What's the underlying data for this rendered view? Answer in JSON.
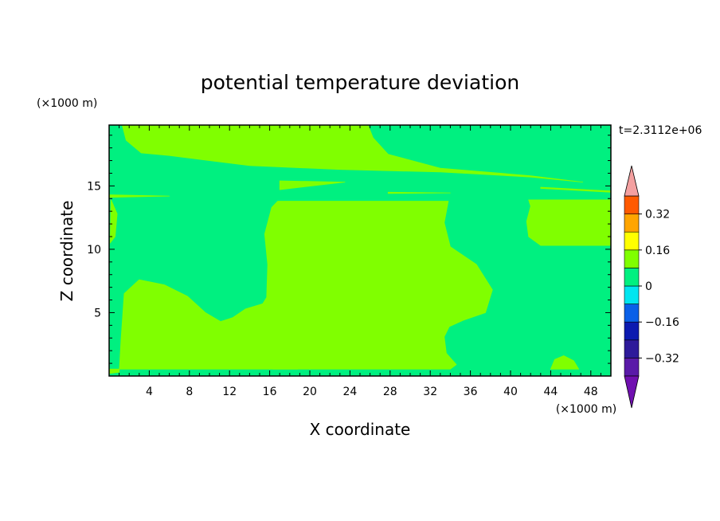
{
  "chart_data": {
    "type": "heatmap",
    "title": "potential temperature deviation",
    "time_label": "t=2.3112e+06",
    "xlabel": "X coordinate",
    "ylabel": "Z coordinate",
    "x_unit": "(×1000 m)",
    "y_unit": "(×1000 m)",
    "xlim": [
      0,
      50
    ],
    "ylim": [
      0,
      19.8
    ],
    "x_ticks": [
      4,
      8,
      12,
      16,
      20,
      24,
      28,
      32,
      36,
      40,
      44,
      48
    ],
    "y_ticks": [
      5,
      10,
      15
    ],
    "levels": [
      -0.4,
      -0.32,
      -0.24,
      -0.16,
      -0.08,
      0,
      0.08,
      0.16,
      0.24,
      0.32,
      0.4
    ],
    "level_labels": [
      {
        "value": 0.32,
        "text": "0.32"
      },
      {
        "value": 0.16,
        "text": "0.16"
      },
      {
        "value": 0,
        "text": "0"
      },
      {
        "value": -0.16,
        "text": "−0.16"
      },
      {
        "value": -0.32,
        "text": "−0.32"
      }
    ],
    "colorbar_colors": [
      "#5a1aa8",
      "#2e1a9a",
      "#0c1ab0",
      "#0a60e8",
      "#00e6f0",
      "#00f080",
      "#80ff00",
      "#ffff00",
      "#ffa500",
      "#ff5a00",
      "#ff2020"
    ],
    "under_color": "#7010b0",
    "over_color": "#f4a0a0",
    "field_colors": {
      "negative": "#00f080",
      "positive": "#80ff00"
    },
    "positive_regions": [
      [
        [
          1.3,
          19.8
        ],
        [
          25.8,
          19.8
        ],
        [
          26.3,
          18.8
        ],
        [
          27.8,
          17.5
        ],
        [
          33,
          16.4
        ],
        [
          42,
          15.8
        ],
        [
          47.2,
          15.3
        ],
        [
          42,
          15.7
        ],
        [
          33,
          16.1
        ],
        [
          23,
          16.3
        ],
        [
          14,
          16.6
        ],
        [
          6,
          17.4
        ],
        [
          3.2,
          17.6
        ],
        [
          1.7,
          18.6
        ]
      ],
      [
        [
          17,
          14.7
        ],
        [
          23.5,
          15.3
        ],
        [
          17,
          15.4
        ]
      ],
      [
        [
          27.8,
          14.5
        ],
        [
          34,
          14.45
        ],
        [
          27.8,
          14.4
        ]
      ],
      [
        [
          0,
          14.3
        ],
        [
          6,
          14.2
        ],
        [
          0,
          14.1
        ]
      ],
      [
        [
          0.2,
          13.9
        ],
        [
          0.8,
          12.8
        ],
        [
          0.6,
          11
        ],
        [
          0.1,
          10.5
        ]
      ],
      [
        [
          43,
          14.9
        ],
        [
          50,
          14.6
        ],
        [
          50,
          14.5
        ],
        [
          43,
          14.8
        ]
      ],
      [
        [
          41.8,
          13.9
        ],
        [
          50,
          13.9
        ],
        [
          50,
          10.3
        ],
        [
          43,
          10.3
        ],
        [
          41.8,
          11
        ],
        [
          41.6,
          12.2
        ],
        [
          42,
          13.4
        ]
      ],
      [
        [
          16.8,
          13.8
        ],
        [
          33.8,
          13.8
        ],
        [
          33.4,
          12.1
        ],
        [
          34,
          10.2
        ],
        [
          36.6,
          8.8
        ],
        [
          38.2,
          6.8
        ],
        [
          37.5,
          5
        ],
        [
          35.3,
          4.4
        ],
        [
          33.9,
          3.9
        ],
        [
          33.4,
          3.1
        ],
        [
          33.6,
          1.8
        ],
        [
          34.6,
          0.9
        ],
        [
          34,
          0.55
        ],
        [
          0,
          0.55
        ],
        [
          0,
          0.2
        ],
        [
          1,
          0.3
        ],
        [
          1.2,
          3
        ],
        [
          1.5,
          6.5
        ],
        [
          3,
          7.6
        ],
        [
          5.5,
          7.2
        ],
        [
          7.8,
          6.3
        ],
        [
          9.6,
          5
        ],
        [
          11.1,
          4.3
        ],
        [
          12.3,
          4.6
        ],
        [
          13.6,
          5.3
        ],
        [
          15.3,
          5.7
        ],
        [
          15.7,
          6.2
        ],
        [
          15.8,
          8.8
        ],
        [
          15.5,
          11.2
        ],
        [
          16.2,
          13.3
        ]
      ],
      [
        [
          16.3,
          0.55
        ],
        [
          17.5,
          2.1
        ],
        [
          18.4,
          3
        ],
        [
          19.2,
          3.6
        ],
        [
          20,
          5
        ],
        [
          20.7,
          5.5
        ],
        [
          21.3,
          5.3
        ],
        [
          21.1,
          4.4
        ],
        [
          19.5,
          3
        ],
        [
          18,
          2
        ],
        [
          18.8,
          0.55
        ]
      ],
      [
        [
          44,
          0.55
        ],
        [
          44.4,
          1.3
        ],
        [
          45.3,
          1.6
        ],
        [
          46.3,
          1.2
        ],
        [
          46.8,
          0.55
        ]
      ]
    ]
  }
}
